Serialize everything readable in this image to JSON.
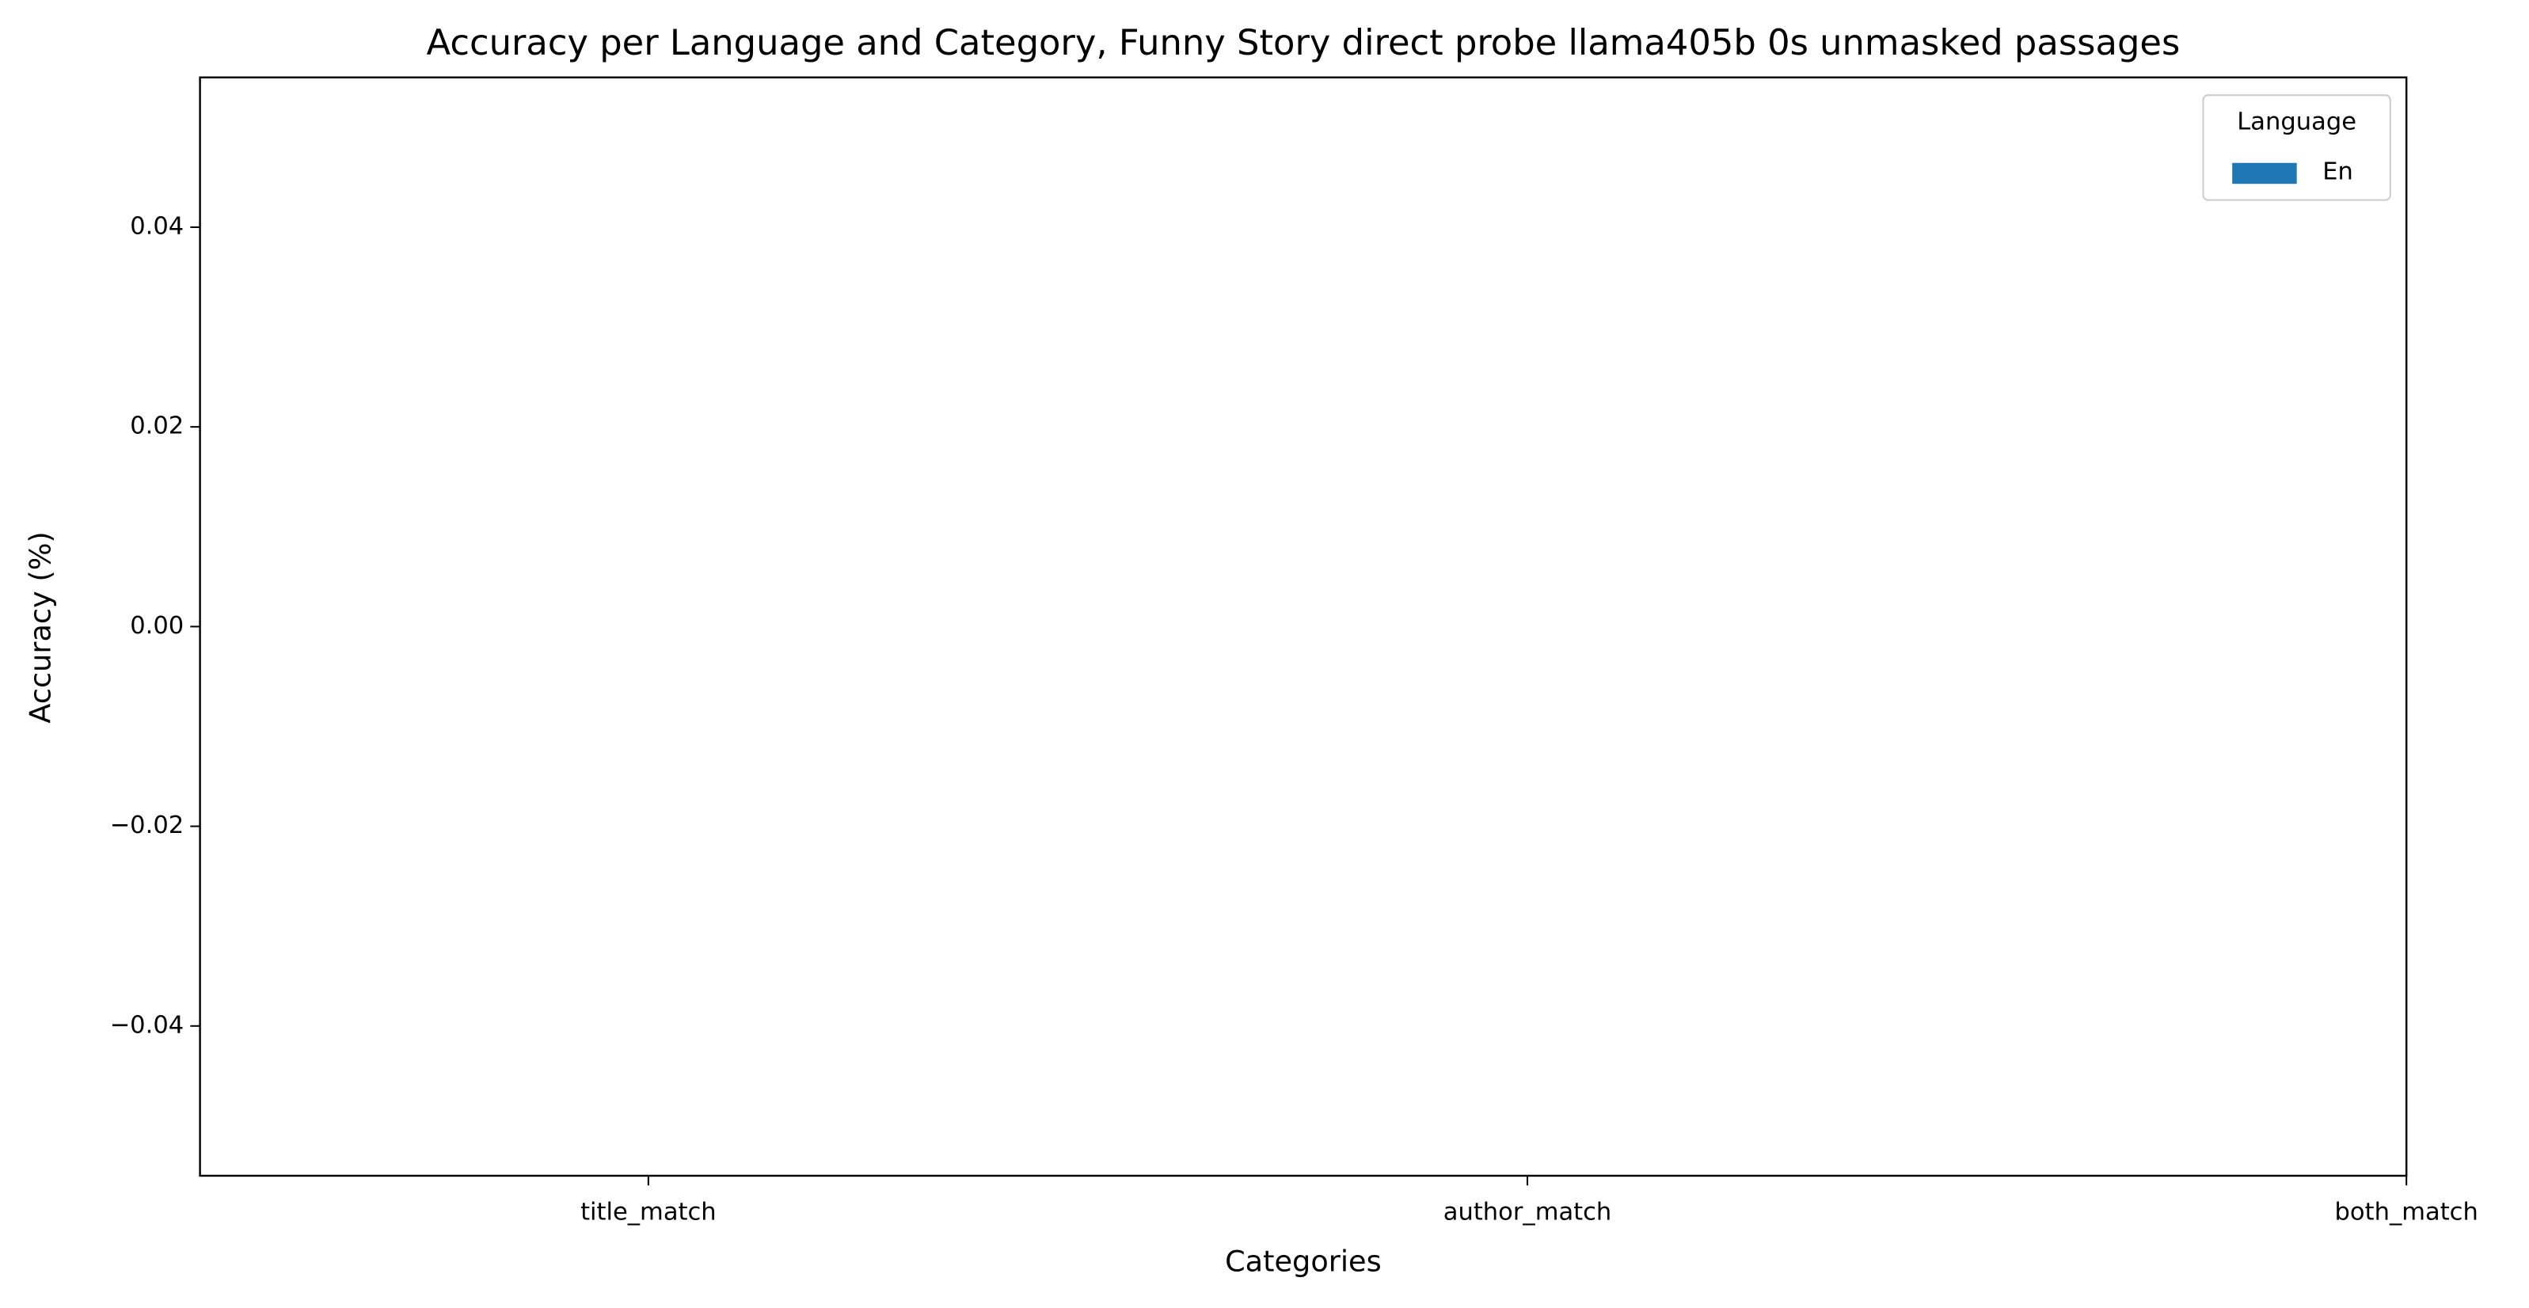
{
  "chart_data": {
    "type": "bar",
    "title": "Accuracy per Language and Category, Funny Story direct probe llama405b 0s unmasked passages",
    "xlabel": "Categories",
    "ylabel": "Accuracy (%)",
    "categories": [
      "title_match",
      "author_match",
      "both_match"
    ],
    "series": [
      {
        "name": "En",
        "color": "#1f77b4",
        "values": [
          0,
          0,
          0
        ]
      }
    ],
    "legend_title": "Language",
    "legend_position": "upper right",
    "ylim": [
      -0.055,
      0.055
    ],
    "yticks": [
      {
        "value": -0.04,
        "label": "−0.04"
      },
      {
        "value": -0.02,
        "label": "−0.02"
      },
      {
        "value": 0,
        "label": "0.00"
      },
      {
        "value": 0.02,
        "label": "0.02"
      },
      {
        "value": 0.04,
        "label": "0.04"
      }
    ],
    "grid": false
  }
}
